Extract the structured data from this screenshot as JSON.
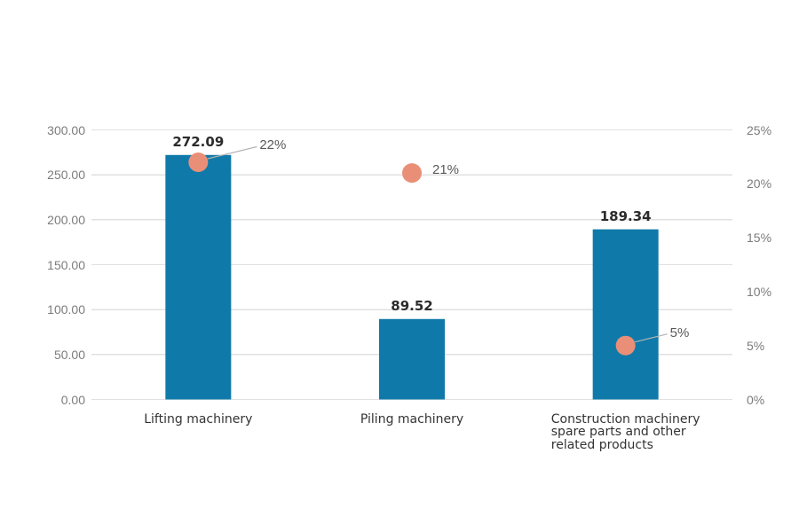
{
  "chart_data": {
    "type": "combo-bar-scatter",
    "title": "",
    "categories": [
      {
        "lines": [
          "Lifting machinery"
        ]
      },
      {
        "lines": [
          "Piling machinery"
        ]
      },
      {
        "lines": [
          "Construction machinery",
          "spare parts and other",
          "related products"
        ]
      }
    ],
    "series": [
      {
        "name": "bar-values",
        "type": "bar",
        "axis": "left",
        "values": [
          272.09,
          89.52,
          189.34
        ],
        "labels": [
          "272.09",
          "89.52",
          "189.34"
        ]
      },
      {
        "name": "percentage-markers",
        "type": "scatter",
        "axis": "right",
        "values": [
          22,
          21,
          5
        ],
        "labels": [
          "22%",
          "21%",
          "5%"
        ]
      }
    ],
    "left_axis": {
      "min": 0,
      "max": 300,
      "tick_values": [
        300,
        250,
        200,
        150,
        100,
        50,
        0
      ],
      "tick_labels": [
        "300.00",
        "250.00",
        "200.00",
        "150.00",
        "100.00",
        "50.00",
        "0.00"
      ]
    },
    "right_axis": {
      "min": 0,
      "max": 25,
      "tick_values": [
        25,
        20,
        15,
        10,
        5,
        0
      ],
      "tick_labels": [
        "25%",
        "20%",
        "15%",
        "10%",
        "5%",
        "0%"
      ]
    },
    "grid": true,
    "legend": "none",
    "colors": {
      "bar": "#0F7AA9",
      "marker": "#E98F77",
      "grid": "#E1E1E1",
      "axis_text": "#7C7C7C",
      "value_text": "#2B2B2B",
      "category_text": "#333333",
      "callout_text": "#595959",
      "leader_line": "#B3B3B3",
      "background": "#FFFFFF"
    }
  }
}
